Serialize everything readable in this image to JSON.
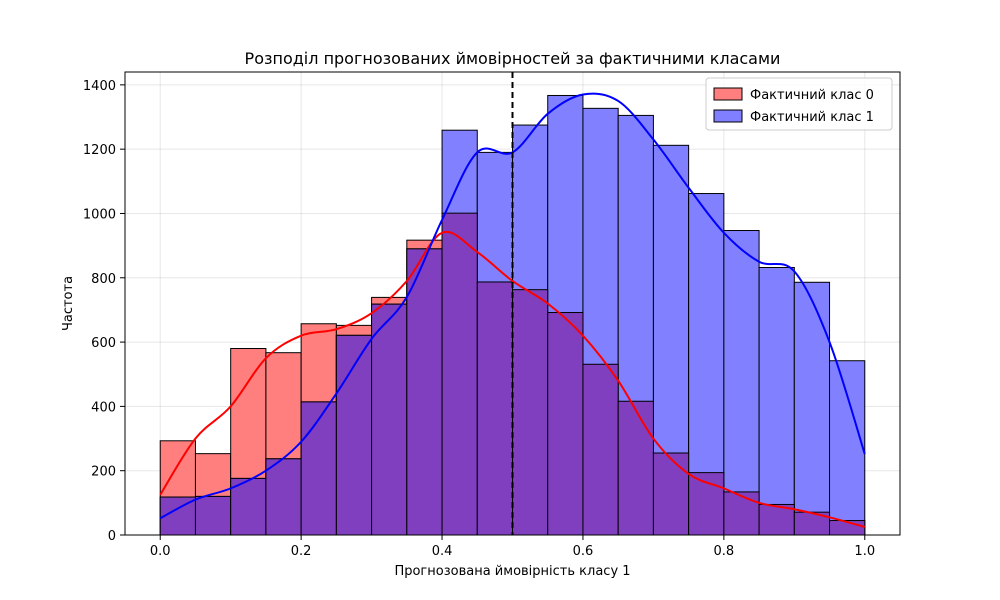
{
  "chart_data": {
    "type": "histogram",
    "title": "Розподіл прогнозованих ймовірностей за фактичними класами",
    "xlabel": "Прогнозована ймовірність класу 1",
    "ylabel": "Частота",
    "xlim": [
      -0.05,
      1.05
    ],
    "ylim": [
      0,
      1440
    ],
    "xticks": [
      0.0,
      0.2,
      0.4,
      0.6,
      0.8,
      1.0
    ],
    "xtick_labels": [
      "0.0",
      "0.2",
      "0.4",
      "0.6",
      "0.8",
      "1.0"
    ],
    "yticks": [
      0,
      200,
      400,
      600,
      800,
      1000,
      1200,
      1400
    ],
    "ytick_labels": [
      "0",
      "200",
      "400",
      "600",
      "800",
      "1000",
      "1200",
      "1400"
    ],
    "grid": true,
    "legend_position": "top-right",
    "threshold": 0.5,
    "bin_edges": [
      0.0,
      0.05,
      0.1,
      0.15,
      0.2,
      0.25,
      0.3,
      0.35,
      0.4,
      0.45,
      0.5,
      0.55,
      0.6,
      0.65,
      0.7,
      0.75,
      0.8,
      0.85,
      0.9,
      0.95,
      1.0
    ],
    "series": [
      {
        "name": "Фактичний клас 0",
        "color": "#ff7f7f",
        "kde_color": "#ff0000",
        "values": [
          293,
          253,
          580,
          567,
          657,
          652,
          739,
          917,
          1001,
          787,
          763,
          692,
          531,
          416,
          255,
          194,
          134,
          95,
          71,
          45
        ],
        "kde_x": [
          0.0,
          0.05,
          0.1,
          0.15,
          0.2,
          0.25,
          0.3,
          0.35,
          0.4,
          0.45,
          0.5,
          0.55,
          0.6,
          0.65,
          0.7,
          0.75,
          0.8,
          0.85,
          0.9,
          0.95,
          1.0
        ],
        "kde_y": [
          125,
          300,
          400,
          550,
          620,
          640,
          690,
          790,
          940,
          880,
          790,
          720,
          620,
          480,
          300,
          190,
          145,
          100,
          80,
          55,
          25
        ]
      },
      {
        "name": "Фактичний клас 1",
        "color": "#7f7fff",
        "kde_color": "#0000ff",
        "values": [
          118,
          120,
          176,
          237,
          414,
          621,
          718,
          890,
          1259,
          1190,
          1275,
          1367,
          1327,
          1305,
          1212,
          1062,
          947,
          832,
          786,
          542
        ],
        "kde_x": [
          0.0,
          0.05,
          0.1,
          0.15,
          0.2,
          0.25,
          0.3,
          0.35,
          0.4,
          0.45,
          0.5,
          0.55,
          0.6,
          0.65,
          0.7,
          0.75,
          0.8,
          0.85,
          0.9,
          0.95,
          1.0
        ],
        "kde_y": [
          52,
          110,
          145,
          200,
          290,
          440,
          610,
          740,
          980,
          1190,
          1190,
          1310,
          1370,
          1350,
          1230,
          1080,
          940,
          850,
          820,
          600,
          252
        ]
      }
    ]
  }
}
